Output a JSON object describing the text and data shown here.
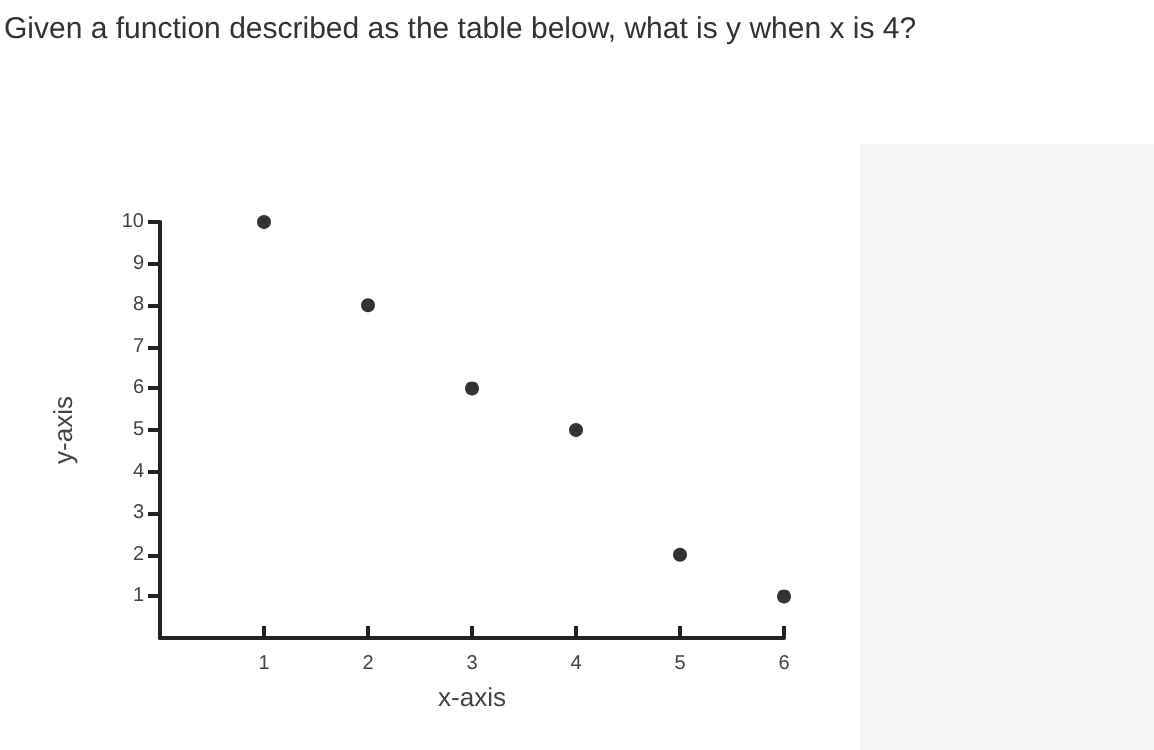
{
  "chart_data": {
    "type": "scatter",
    "title": "Given a function described as the table below, what is y when x is 4?",
    "xlabel": "x-axis",
    "ylabel": "y-axis",
    "x": [
      1,
      2,
      3,
      4,
      5,
      6
    ],
    "series": [
      {
        "color": "#000000",
        "values": [
          10,
          8,
          6,
          5,
          2,
          1
        ]
      }
    ],
    "xlim": [
      0,
      6
    ],
    "xticks": [
      1,
      2,
      3,
      4,
      5,
      6
    ],
    "ylim": [
      0,
      10
    ],
    "yticks": [
      1,
      2,
      3,
      4,
      5,
      6,
      7,
      8,
      9,
      10
    ],
    "grid": false,
    "marker": "circle"
  }
}
